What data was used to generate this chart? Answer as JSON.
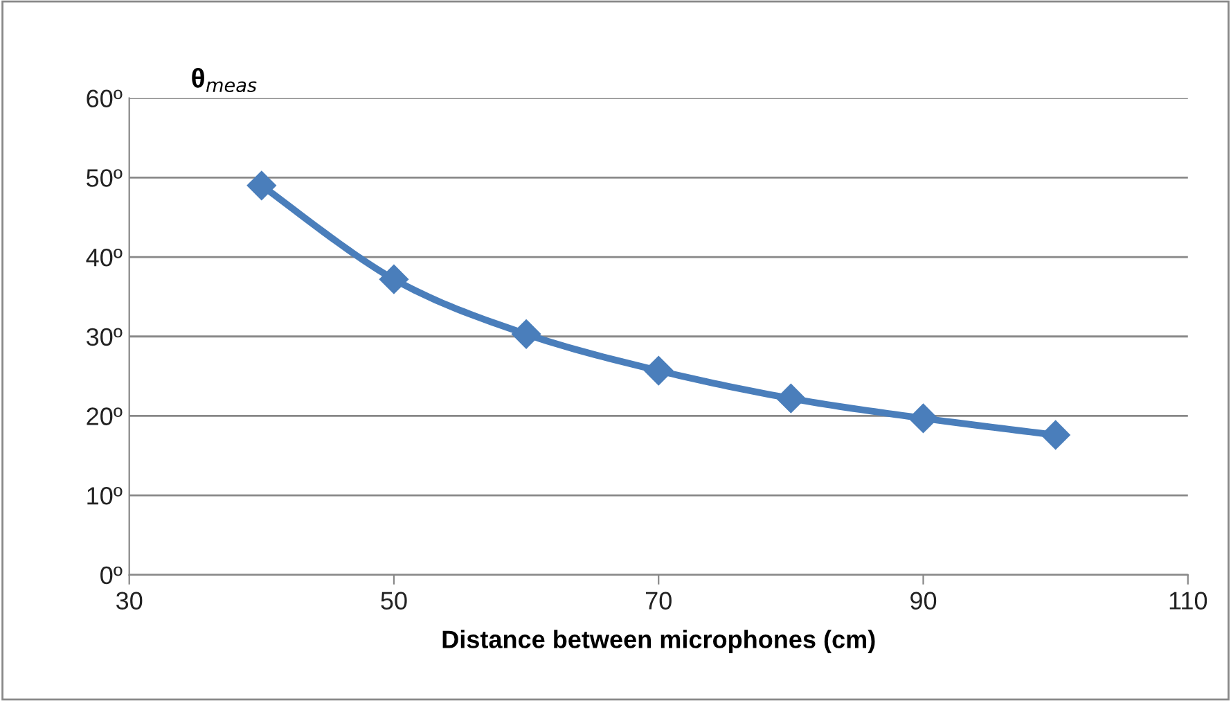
{
  "chart_data": {
    "type": "line",
    "xlabel": "Distance between microphones (cm)",
    "ylabel": "θ$_{meas}$",
    "x": [
      40,
      50,
      60,
      70,
      80,
      90,
      100
    ],
    "series": [
      {
        "color": "#4a7ebb",
        "values": [
          49.0,
          37.2,
          30.3,
          25.7,
          22.2,
          19.7,
          17.6
        ]
      }
    ],
    "xlim": [
      30,
      110
    ],
    "xticks": [
      30,
      50,
      70,
      90,
      110
    ],
    "ylim": [
      0,
      60
    ],
    "yticks": [
      {
        "value": 0,
        "label": "0º"
      },
      {
        "value": 10,
        "label": "10º"
      },
      {
        "value": 20,
        "label": "20º"
      },
      {
        "value": 30,
        "label": "30º"
      },
      {
        "value": 40,
        "label": "40º"
      },
      {
        "value": 50,
        "label": "50º"
      },
      {
        "value": 60,
        "label": "60º"
      }
    ],
    "grid": "y",
    "marker": "diamond",
    "line_style": "solid",
    "legend": false
  }
}
